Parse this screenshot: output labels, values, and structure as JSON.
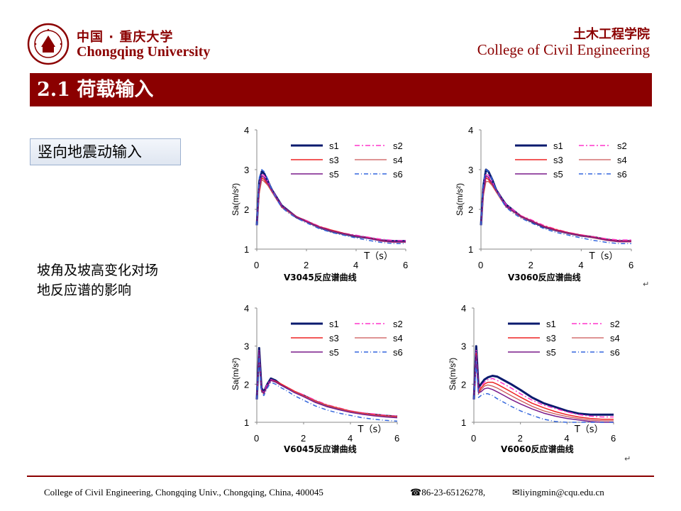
{
  "header": {
    "uni_cn": "中国 · 重庆大学",
    "uni_en": "Chongqing University",
    "college_cn": "土木工程学院",
    "college_en": "College of Civil Engineering"
  },
  "title": "2.1 荷载输入",
  "tag": "竖向地震动输入",
  "side_text": "坡角及坡高变化对场地反应谱的影响",
  "footer": {
    "address": "College of Civil Engineering, Chongqing Univ., Chongqing, China, 400045",
    "phone": "86-23-65126278,",
    "email": "liyingmin@cqu.edu.cn"
  },
  "colors": {
    "brand": "#8b0000",
    "s1": "#0a1a6e",
    "s2": "#ff33cc",
    "s3": "#ee2222",
    "s4": "#cc5555",
    "s5": "#7a1a8a",
    "s6": "#3366dd"
  },
  "chart_data": [
    {
      "type": "line",
      "xlabel": "T（s）",
      "ylabel": "Sa(m/s²)",
      "xlim": [
        0,
        6
      ],
      "ylim": [
        1,
        4
      ],
      "xticks": [
        0,
        2,
        4,
        6
      ],
      "yticks": [
        1,
        2,
        3,
        4
      ],
      "caption": "V3045反应谱曲线",
      "legend": [
        "s1",
        "s2",
        "s3",
        "s4",
        "s5",
        "s6"
      ],
      "x": [
        0,
        0.1,
        0.2,
        0.3,
        0.45,
        0.6,
        0.8,
        1.0,
        1.3,
        1.6,
        2.0,
        2.5,
        3.0,
        3.5,
        4.0,
        4.5,
        5.0,
        5.5,
        6.0
      ],
      "series": [
        {
          "name": "s1",
          "values": [
            1.6,
            2.7,
            2.95,
            2.9,
            2.7,
            2.5,
            2.3,
            2.1,
            1.95,
            1.8,
            1.7,
            1.55,
            1.45,
            1.38,
            1.32,
            1.28,
            1.22,
            1.2,
            1.2
          ]
        },
        {
          "name": "s2",
          "values": [
            1.6,
            2.6,
            2.9,
            2.85,
            2.7,
            2.5,
            2.3,
            2.1,
            1.95,
            1.82,
            1.72,
            1.58,
            1.48,
            1.4,
            1.35,
            1.3,
            1.25,
            1.22,
            1.22
          ]
        },
        {
          "name": "s3",
          "values": [
            1.6,
            2.5,
            2.8,
            2.75,
            2.6,
            2.45,
            2.25,
            2.08,
            1.95,
            1.82,
            1.7,
            1.57,
            1.48,
            1.4,
            1.33,
            1.28,
            1.22,
            1.18,
            1.18
          ]
        },
        {
          "name": "s4",
          "values": [
            1.6,
            2.4,
            2.75,
            2.7,
            2.6,
            2.45,
            2.25,
            2.05,
            1.92,
            1.8,
            1.68,
            1.55,
            1.45,
            1.38,
            1.32,
            1.27,
            1.2,
            1.17,
            1.17
          ]
        },
        {
          "name": "s5",
          "values": [
            1.6,
            2.55,
            2.85,
            2.8,
            2.65,
            2.48,
            2.28,
            2.08,
            1.95,
            1.81,
            1.69,
            1.56,
            1.46,
            1.39,
            1.33,
            1.27,
            1.21,
            1.18,
            1.18
          ]
        },
        {
          "name": "s6",
          "values": [
            1.6,
            2.8,
            3.0,
            2.95,
            2.75,
            2.5,
            2.25,
            2.05,
            1.9,
            1.78,
            1.66,
            1.52,
            1.42,
            1.35,
            1.28,
            1.22,
            1.17,
            1.14,
            1.14
          ]
        }
      ]
    },
    {
      "type": "line",
      "xlabel": "T（s）",
      "ylabel": "Sa(m/s²)",
      "xlim": [
        0,
        6
      ],
      "ylim": [
        1,
        4
      ],
      "xticks": [
        0,
        2,
        4,
        6
      ],
      "yticks": [
        1,
        2,
        3,
        4
      ],
      "caption": "V3060反应谱曲线",
      "legend": [
        "s1",
        "s2",
        "s3",
        "s4",
        "s5",
        "s6"
      ],
      "x": [
        0,
        0.1,
        0.2,
        0.3,
        0.45,
        0.6,
        0.8,
        1.0,
        1.3,
        1.6,
        2.0,
        2.5,
        3.0,
        3.5,
        4.0,
        4.5,
        5.0,
        5.5,
        6.0
      ],
      "series": [
        {
          "name": "s1",
          "values": [
            1.6,
            2.6,
            3.0,
            2.95,
            2.75,
            2.5,
            2.3,
            2.12,
            1.97,
            1.82,
            1.7,
            1.56,
            1.47,
            1.4,
            1.34,
            1.3,
            1.24,
            1.2,
            1.2
          ]
        },
        {
          "name": "s2",
          "values": [
            1.6,
            2.5,
            2.9,
            2.85,
            2.7,
            2.5,
            2.3,
            2.12,
            1.98,
            1.84,
            1.74,
            1.6,
            1.5,
            1.42,
            1.36,
            1.31,
            1.26,
            1.23,
            1.23
          ]
        },
        {
          "name": "s3",
          "values": [
            1.6,
            2.4,
            2.8,
            2.75,
            2.6,
            2.45,
            2.25,
            2.08,
            1.95,
            1.83,
            1.72,
            1.58,
            1.49,
            1.41,
            1.35,
            1.3,
            1.24,
            1.2,
            1.2
          ]
        },
        {
          "name": "s4",
          "values": [
            1.6,
            2.35,
            2.7,
            2.7,
            2.6,
            2.45,
            2.25,
            2.06,
            1.93,
            1.8,
            1.7,
            1.56,
            1.46,
            1.39,
            1.33,
            1.28,
            1.22,
            1.18,
            1.18
          ]
        },
        {
          "name": "s5",
          "values": [
            1.6,
            2.45,
            2.85,
            2.8,
            2.65,
            2.48,
            2.28,
            2.08,
            1.95,
            1.82,
            1.71,
            1.57,
            1.47,
            1.4,
            1.34,
            1.29,
            1.23,
            1.19,
            1.19
          ]
        },
        {
          "name": "s6",
          "values": [
            1.6,
            2.7,
            3.0,
            2.95,
            2.75,
            2.5,
            2.25,
            2.05,
            1.9,
            1.78,
            1.66,
            1.52,
            1.42,
            1.35,
            1.28,
            1.22,
            1.17,
            1.14,
            1.14
          ]
        }
      ]
    },
    {
      "type": "line",
      "xlabel": "T（s）",
      "ylabel": "Sa(m/s²)",
      "xlim": [
        0,
        6
      ],
      "ylim": [
        1,
        4
      ],
      "xticks": [
        0,
        2,
        4,
        6
      ],
      "yticks": [
        1,
        2,
        3,
        4
      ],
      "caption": "V6045反应谱曲线",
      "legend": [
        "s1",
        "s2",
        "s3",
        "s4",
        "s5",
        "s6"
      ],
      "x": [
        0,
        0.1,
        0.2,
        0.3,
        0.45,
        0.6,
        0.8,
        1.0,
        1.3,
        1.6,
        2.0,
        2.5,
        3.0,
        3.5,
        4.0,
        4.5,
        5.0,
        5.5,
        6.0
      ],
      "series": [
        {
          "name": "s1",
          "values": [
            1.6,
            2.95,
            1.9,
            1.8,
            2.0,
            2.15,
            2.1,
            2.0,
            1.9,
            1.8,
            1.7,
            1.55,
            1.43,
            1.35,
            1.28,
            1.23,
            1.2,
            1.17,
            1.15
          ]
        },
        {
          "name": "s2",
          "values": [
            1.6,
            2.9,
            1.85,
            1.8,
            2.0,
            2.12,
            2.08,
            2.0,
            1.92,
            1.82,
            1.72,
            1.58,
            1.46,
            1.38,
            1.3,
            1.25,
            1.22,
            1.18,
            1.16
          ]
        },
        {
          "name": "s3",
          "values": [
            1.6,
            2.85,
            1.85,
            1.75,
            1.95,
            2.1,
            2.08,
            2.02,
            1.92,
            1.82,
            1.7,
            1.56,
            1.45,
            1.37,
            1.29,
            1.24,
            1.2,
            1.17,
            1.15
          ]
        },
        {
          "name": "s4",
          "values": [
            1.6,
            2.8,
            1.8,
            1.75,
            1.95,
            2.1,
            2.05,
            1.98,
            1.9,
            1.8,
            1.69,
            1.55,
            1.44,
            1.36,
            1.28,
            1.23,
            1.19,
            1.16,
            1.14
          ]
        },
        {
          "name": "s5",
          "values": [
            1.6,
            2.88,
            1.86,
            1.76,
            1.96,
            2.1,
            2.06,
            1.99,
            1.89,
            1.78,
            1.67,
            1.52,
            1.41,
            1.33,
            1.26,
            1.21,
            1.17,
            1.14,
            1.12
          ]
        },
        {
          "name": "s6",
          "values": [
            1.6,
            2.75,
            1.8,
            1.7,
            1.9,
            2.05,
            2.0,
            1.92,
            1.82,
            1.7,
            1.58,
            1.43,
            1.32,
            1.24,
            1.18,
            1.12,
            1.08,
            1.05,
            1.03
          ]
        }
      ]
    },
    {
      "type": "line",
      "xlabel": "T（s）",
      "ylabel": "Sa(m/s²)",
      "xlim": [
        0,
        6
      ],
      "ylim": [
        1,
        4
      ],
      "xticks": [
        0,
        2,
        4,
        6
      ],
      "yticks": [
        1,
        2,
        3,
        4
      ],
      "caption": "V6060反应谱曲线",
      "legend": [
        "s1",
        "s2",
        "s3",
        "s4",
        "s5",
        "s6"
      ],
      "x": [
        0,
        0.1,
        0.2,
        0.3,
        0.45,
        0.6,
        0.8,
        1.0,
        1.3,
        1.6,
        2.0,
        2.5,
        3.0,
        3.5,
        4.0,
        4.5,
        5.0,
        5.5,
        6.0
      ],
      "series": [
        {
          "name": "s1",
          "values": [
            1.6,
            3.0,
            1.9,
            2.0,
            2.12,
            2.18,
            2.22,
            2.2,
            2.1,
            2.0,
            1.85,
            1.65,
            1.5,
            1.4,
            1.3,
            1.23,
            1.2,
            1.2,
            1.2
          ]
        },
        {
          "name": "s2",
          "values": [
            1.6,
            2.9,
            1.85,
            1.95,
            2.05,
            2.12,
            2.15,
            2.1,
            2.0,
            1.9,
            1.75,
            1.58,
            1.45,
            1.36,
            1.27,
            1.2,
            1.16,
            1.14,
            1.14
          ]
        },
        {
          "name": "s3",
          "values": [
            1.6,
            2.8,
            1.8,
            1.9,
            2.0,
            2.05,
            2.05,
            2.0,
            1.9,
            1.8,
            1.66,
            1.5,
            1.38,
            1.28,
            1.2,
            1.14,
            1.1,
            1.08,
            1.08
          ]
        },
        {
          "name": "s4",
          "values": [
            1.6,
            2.7,
            1.75,
            1.85,
            1.95,
            1.98,
            1.95,
            1.9,
            1.8,
            1.7,
            1.57,
            1.42,
            1.3,
            1.22,
            1.15,
            1.1,
            1.06,
            1.04,
            1.04
          ]
        },
        {
          "name": "s5",
          "values": [
            1.6,
            2.75,
            1.78,
            1.8,
            1.88,
            1.9,
            1.86,
            1.8,
            1.7,
            1.6,
            1.48,
            1.35,
            1.24,
            1.16,
            1.1,
            1.06,
            1.02,
            1.0,
            1.0
          ]
        },
        {
          "name": "s6",
          "values": [
            1.6,
            2.6,
            1.65,
            1.7,
            1.75,
            1.75,
            1.7,
            1.62,
            1.52,
            1.42,
            1.3,
            1.18,
            1.08,
            1.02,
            1.0,
            1.0,
            1.0,
            1.0,
            1.0
          ]
        }
      ]
    }
  ]
}
